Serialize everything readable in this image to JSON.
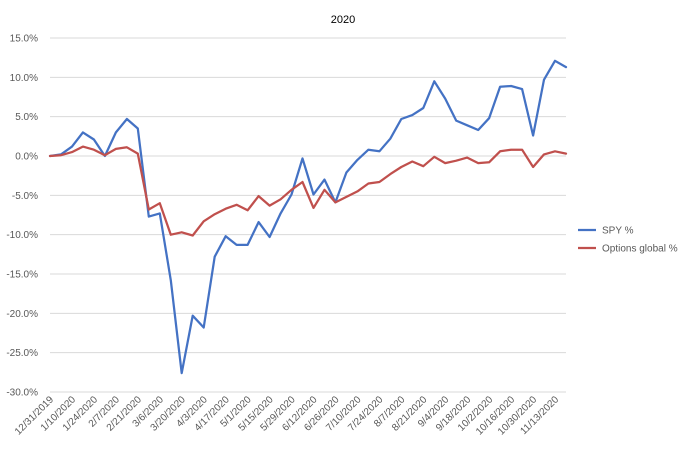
{
  "chart_data": {
    "type": "line",
    "title": "2020",
    "xlabel": "",
    "ylabel": "",
    "ylim": [
      -30,
      15
    ],
    "y_ticks": [
      "15.0%",
      "10.0%",
      "5.0%",
      "0.0%",
      "-5.0%",
      "-10.0%",
      "-15.0%",
      "-20.0%",
      "-25.0%",
      "-30.0%"
    ],
    "x_tick_labels": [
      "12/31/2019",
      "1/10/2020",
      "1/24/2020",
      "2/7/2020",
      "2/21/2020",
      "3/6/2020",
      "3/20/2020",
      "4/3/2020",
      "4/17/2020",
      "5/1/2020",
      "5/15/2020",
      "5/29/2020",
      "6/12/2020",
      "6/26/2020",
      "7/10/2020",
      "7/24/2020",
      "8/7/2020",
      "8/21/2020",
      "9/4/2020",
      "9/18/2020",
      "10/2/2020",
      "10/16/2020",
      "10/30/2020",
      "11/13/2020"
    ],
    "x": [
      "12/31/2019",
      "1/3/2020",
      "1/10/2020",
      "1/17/2020",
      "1/24/2020",
      "1/31/2020",
      "2/7/2020",
      "2/14/2020",
      "2/21/2020",
      "2/28/2020",
      "3/6/2020",
      "3/13/2020",
      "3/20/2020",
      "3/27/2020",
      "4/3/2020",
      "4/10/2020",
      "4/17/2020",
      "4/24/2020",
      "5/1/2020",
      "5/8/2020",
      "5/15/2020",
      "5/22/2020",
      "5/29/2020",
      "6/5/2020",
      "6/12/2020",
      "6/19/2020",
      "6/26/2020",
      "7/3/2020",
      "7/10/2020",
      "7/17/2020",
      "7/24/2020",
      "7/31/2020",
      "8/7/2020",
      "8/14/2020",
      "8/21/2020",
      "8/28/2020",
      "9/4/2020",
      "9/11/2020",
      "9/18/2020",
      "9/25/2020",
      "10/2/2020",
      "10/9/2020",
      "10/16/2020",
      "10/23/2020",
      "10/30/2020",
      "11/6/2020",
      "11/13/2020",
      "11/20/2020"
    ],
    "series": [
      {
        "name": "SPY %",
        "color": "#4472C4",
        "values": [
          0.0,
          0.2,
          1.2,
          3.0,
          2.1,
          0.0,
          3.0,
          4.7,
          3.5,
          -7.7,
          -7.3,
          -15.8,
          -27.6,
          -20.3,
          -21.8,
          -12.8,
          -10.2,
          -11.3,
          -11.3,
          -8.4,
          -10.3,
          -7.3,
          -4.9,
          -0.3,
          -4.9,
          -3.0,
          -5.9,
          -2.1,
          -0.5,
          0.8,
          0.6,
          2.2,
          4.7,
          5.2,
          6.1,
          9.5,
          7.3,
          4.5,
          3.9,
          3.3,
          4.8,
          8.8,
          8.9,
          8.5,
          2.6,
          9.7,
          12.1,
          11.3
        ]
      },
      {
        "name": "Options global %",
        "color": "#C0504D",
        "values": [
          0.0,
          0.1,
          0.5,
          1.2,
          0.8,
          0.1,
          0.9,
          1.1,
          0.3,
          -6.8,
          -6.0,
          -10.0,
          -9.7,
          -10.1,
          -8.3,
          -7.4,
          -6.7,
          -6.2,
          -6.9,
          -5.1,
          -6.3,
          -5.5,
          -4.3,
          -3.3,
          -6.6,
          -4.3,
          -5.9,
          -5.2,
          -4.5,
          -3.5,
          -3.3,
          -2.3,
          -1.4,
          -0.7,
          -1.3,
          -0.1,
          -0.9,
          -0.6,
          -0.2,
          -0.9,
          -0.8,
          0.6,
          0.8,
          0.8,
          -1.4,
          0.2,
          0.6,
          0.3
        ]
      }
    ],
    "grid": "horizontal",
    "legend_position": "right"
  }
}
